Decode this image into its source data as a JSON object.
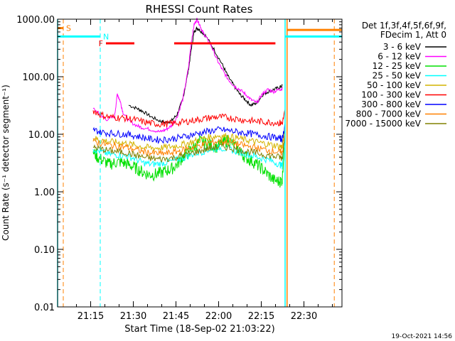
{
  "chart_data": {
    "type": "line",
    "title": "RHESSI Count Rates",
    "xlabel": "Start Time (18-Sep-02 21:03:22)",
    "ylabel": "Count Rate (s⁻¹ detector segment⁻¹)",
    "x_unit": "minutes after 21:03:22",
    "xlim": [
      0,
      100
    ],
    "ylim": [
      0.01,
      1000
    ],
    "y_scale": "log",
    "grid": false,
    "legend_position": "right",
    "x_ticks": [
      {
        "value": 11.63,
        "label": "21:15"
      },
      {
        "value": 26.63,
        "label": "21:30"
      },
      {
        "value": 41.63,
        "label": "21:45"
      },
      {
        "value": 56.63,
        "label": "22:00"
      },
      {
        "value": 71.63,
        "label": "22:15"
      },
      {
        "value": 86.63,
        "label": "22:30"
      }
    ],
    "y_ticks": [
      {
        "value": 0.01,
        "label": "0.01"
      },
      {
        "value": 0.1,
        "label": "0.10"
      },
      {
        "value": 1,
        "label": "1.00"
      },
      {
        "value": 10,
        "label": "10.00"
      },
      {
        "value": 100,
        "label": "100.00"
      },
      {
        "value": 1000,
        "label": "1000.00"
      }
    ],
    "legend_header": [
      "Det 1f,3f,4f,5f,6f,9f,",
      "FDecim 1, Att 0"
    ],
    "series": [
      {
        "name": "3 - 6 keV",
        "color": "#000000",
        "x": [
          12.5,
          15,
          17,
          20,
          22,
          25,
          28,
          30,
          33,
          36,
          38,
          40,
          42,
          44,
          46,
          47,
          48,
          49,
          50,
          52,
          55,
          58,
          60,
          62,
          64,
          66,
          68,
          70,
          72,
          74,
          76,
          78,
          79
        ],
        "y": [
          null,
          null,
          null,
          null,
          null,
          32,
          28,
          25,
          20,
          17,
          16,
          17,
          22,
          40,
          130,
          300,
          600,
          700,
          650,
          520,
          300,
          160,
          100,
          70,
          50,
          40,
          32,
          35,
          48,
          55,
          60,
          65,
          70
        ]
      },
      {
        "name": "6 - 12 keV",
        "color": "#ff00ff",
        "x": [
          12.5,
          15,
          17,
          20,
          21,
          22,
          23,
          25,
          28,
          30,
          33,
          36,
          38,
          40,
          42,
          44,
          46,
          47,
          48,
          49,
          50,
          51,
          52,
          54,
          56,
          58,
          60,
          62,
          64,
          66,
          68,
          70,
          72,
          74,
          76,
          78,
          79
        ],
        "y": [
          28,
          22,
          18,
          20,
          50,
          38,
          24,
          17,
          14,
          13,
          12,
          11,
          12,
          14,
          20,
          40,
          140,
          400,
          800,
          1000,
          800,
          600,
          500,
          350,
          200,
          130,
          90,
          70,
          60,
          50,
          40,
          35,
          50,
          60,
          55,
          60,
          62
        ]
      },
      {
        "name": "12 - 25 keV",
        "color": "#00e000",
        "x": [
          12.5,
          14,
          16,
          18,
          20,
          22,
          24,
          26,
          28,
          30,
          32,
          34,
          36,
          38,
          40,
          42,
          44,
          46,
          48,
          50,
          52,
          54,
          56,
          58,
          60,
          62,
          64,
          66,
          68,
          70,
          72,
          74,
          76,
          78,
          79,
          80
        ],
        "y": [
          5,
          4,
          3.5,
          3,
          3.2,
          3.3,
          3.1,
          2.8,
          2.5,
          2.2,
          2,
          2,
          2.1,
          2.3,
          2.5,
          3,
          4,
          5,
          6,
          7.5,
          7,
          6.5,
          6,
          7,
          8,
          6.5,
          5,
          4,
          3.5,
          3,
          2.5,
          2,
          1.6,
          1.5,
          1.6,
          12
        ]
      },
      {
        "name": "25 - 50 keV",
        "color": "#00ffff",
        "x": [
          12.5,
          15,
          18,
          21,
          24,
          27,
          30,
          33,
          36,
          39,
          42,
          45,
          48,
          51,
          54,
          57,
          60,
          63,
          66,
          69,
          72,
          75,
          78,
          79,
          80
        ],
        "y": [
          5.5,
          5,
          4.5,
          4.4,
          4.2,
          3.8,
          3.2,
          3,
          3.1,
          3.3,
          3.6,
          4,
          4.6,
          5,
          5.5,
          5.8,
          5.6,
          5,
          4.6,
          4.2,
          3.8,
          3.5,
          3,
          2.8,
          11
        ]
      },
      {
        "name": "50 - 100 keV",
        "color": "#d4b400",
        "x": [
          12.5,
          15,
          18,
          21,
          24,
          27,
          30,
          33,
          36,
          39,
          42,
          45,
          48,
          51,
          54,
          57,
          60,
          63,
          66,
          69,
          72,
          75,
          78,
          79,
          80
        ],
        "y": [
          8.5,
          8,
          7.5,
          7.2,
          7,
          6.5,
          6,
          5.8,
          5.8,
          6,
          6.3,
          6.8,
          7.5,
          8.3,
          9,
          9.5,
          9.2,
          8.6,
          8,
          7.5,
          7,
          6.6,
          6.2,
          6,
          14
        ]
      },
      {
        "name": "100 - 300 keV",
        "color": "#ff0000",
        "x": [
          12.5,
          15,
          18,
          21,
          24,
          27,
          30,
          33,
          36,
          39,
          42,
          45,
          48,
          51,
          54,
          57,
          60,
          63,
          66,
          69,
          72,
          75,
          78,
          79,
          80
        ],
        "y": [
          26,
          22,
          20,
          19.5,
          19,
          18,
          16.5,
          15.5,
          15,
          15.2,
          15.8,
          16.5,
          17.5,
          18.5,
          19.5,
          20,
          19.5,
          18.5,
          17.5,
          17,
          16.5,
          16.2,
          15.8,
          15.5,
          25
        ]
      },
      {
        "name": "300 - 800 keV",
        "color": "#0000ff",
        "x": [
          12.5,
          15,
          18,
          21,
          24,
          27,
          30,
          33,
          36,
          39,
          42,
          45,
          48,
          51,
          54,
          57,
          60,
          63,
          66,
          69,
          72,
          75,
          78,
          79,
          80
        ],
        "y": [
          12,
          11,
          10.5,
          10.2,
          10,
          9.5,
          8.8,
          8.2,
          8,
          8.2,
          8.6,
          9.2,
          10,
          10.8,
          11.5,
          12,
          11.6,
          11,
          10.5,
          10,
          9.5,
          9,
          8.5,
          8.2,
          15
        ]
      },
      {
        "name": "800 - 7000 keV",
        "color": "#ff8000",
        "x": [
          12.5,
          15,
          18,
          21,
          24,
          27,
          30,
          33,
          36,
          39,
          42,
          45,
          48,
          51,
          54,
          57,
          60,
          63,
          66,
          69,
          72,
          75,
          78,
          79,
          80
        ],
        "y": [
          7.5,
          7,
          6.5,
          6.2,
          6,
          5.5,
          5,
          4.7,
          4.6,
          4.7,
          5,
          5.5,
          6,
          6.6,
          7.2,
          7.6,
          7.3,
          6.8,
          6.3,
          5.9,
          5.5,
          5.2,
          4.9,
          4.7,
          12
        ]
      },
      {
        "name": "7000 - 15000 keV",
        "color": "#808000",
        "x": [
          12.5,
          15,
          18,
          21,
          24,
          27,
          30,
          33,
          36,
          39,
          42,
          45,
          48,
          51,
          54,
          57,
          60,
          63,
          66,
          69,
          72,
          75,
          78,
          79,
          80
        ],
        "y": [
          6,
          5.6,
          5.2,
          5,
          4.8,
          4.4,
          4,
          3.8,
          3.7,
          3.8,
          4,
          4.4,
          4.8,
          5.3,
          5.8,
          6.1,
          5.9,
          5.5,
          5.1,
          4.8,
          4.5,
          4.2,
          4,
          3.8,
          10
        ]
      }
    ],
    "annotations": {
      "attenuator": [
        {
          "label": "S",
          "color": "#ff8000",
          "x_start": 0,
          "x_end": 2,
          "level": 700
        },
        {
          "label": "",
          "color": "#ff8000",
          "x_start": 80.7,
          "x_end": 100,
          "level": 650
        }
      ],
      "night": [
        {
          "label": "N",
          "color": "#00ffff",
          "x_start": 0,
          "x_end": 15,
          "level": 500
        },
        {
          "label": "",
          "color": "#00ffff",
          "x_start": 80,
          "x_end": 100,
          "level": 500
        }
      ],
      "flare": [
        {
          "label": "F",
          "color": "#ff0000",
          "x_start": 17,
          "x_end": 27,
          "level": 380
        },
        {
          "label": "",
          "color": "#ff0000",
          "x_start": 41,
          "x_end": 76.6,
          "level": 380
        }
      ],
      "dashed_lines": [
        {
          "x": 2,
          "color": "#ff8000"
        },
        {
          "x": 15,
          "color": "#00ffff"
        },
        {
          "x": 97.3,
          "color": "#ff8000"
        }
      ],
      "solid_lines": [
        {
          "x": 0,
          "color": "#00ffff"
        },
        {
          "x": 80,
          "color": "#00ffff"
        },
        {
          "x": 80.7,
          "color": "#ff8000"
        }
      ]
    }
  },
  "footer": {
    "timestamp": "19-Oct-2021 14:56"
  }
}
